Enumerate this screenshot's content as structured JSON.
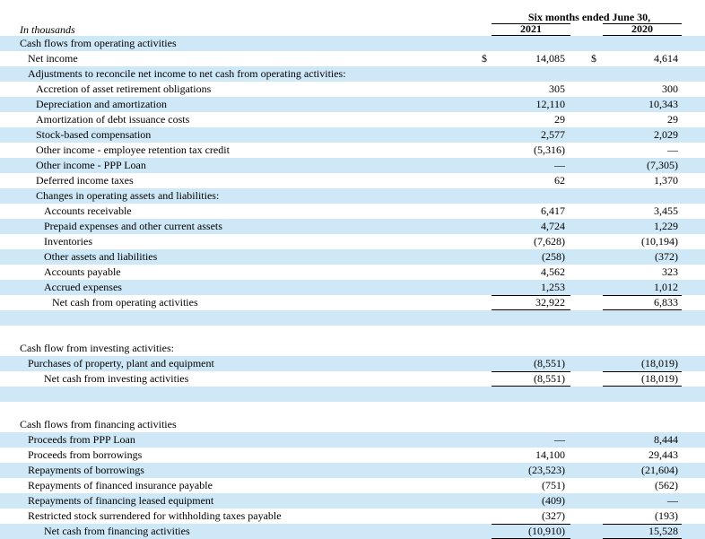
{
  "header": {
    "period": "Six months ended June 30,",
    "col_2021": "2021",
    "col_2020": "2020",
    "units": "In thousands"
  },
  "rows": [
    {
      "label": "Cash flows from operating activities",
      "indent": 0,
      "v21": "",
      "v20": "",
      "shaded": true
    },
    {
      "label": "Net income",
      "indent": 1,
      "cur": "$",
      "v21": "14,085",
      "v20": "4,614",
      "shaded": false
    },
    {
      "label": "Adjustments to reconcile net income to net cash from operating activities:",
      "indent": 1,
      "v21": "",
      "v20": "",
      "shaded": true
    },
    {
      "label": "Accretion of asset retirement obligations",
      "indent": 2,
      "v21": "305",
      "v20": "300",
      "shaded": false
    },
    {
      "label": "Depreciation and amortization",
      "indent": 2,
      "v21": "12,110",
      "v20": "10,343",
      "shaded": true
    },
    {
      "label": "Amortization of debt issuance costs",
      "indent": 2,
      "v21": "29",
      "v20": "29",
      "shaded": false
    },
    {
      "label": "Stock-based compensation",
      "indent": 2,
      "v21": "2,577",
      "v20": "2,029",
      "shaded": true
    },
    {
      "label": "Other income - employee retention tax credit",
      "indent": 2,
      "v21": "(5,316)",
      "v20": "—",
      "shaded": false
    },
    {
      "label": "Other income - PPP Loan",
      "indent": 2,
      "v21": "—",
      "v20": "(7,305)",
      "shaded": true
    },
    {
      "label": "Deferred income taxes",
      "indent": 2,
      "v21": "62",
      "v20": "1,370",
      "shaded": false
    },
    {
      "label": "Changes in operating assets and liabilities:",
      "indent": 2,
      "v21": "",
      "v20": "",
      "shaded": true
    },
    {
      "label": "Accounts receivable",
      "indent": 3,
      "v21": "6,417",
      "v20": "3,455",
      "shaded": false
    },
    {
      "label": "Prepaid expenses and other current assets",
      "indent": 3,
      "v21": "4,724",
      "v20": "1,229",
      "shaded": true
    },
    {
      "label": "Inventories",
      "indent": 3,
      "v21": "(7,628)",
      "v20": "(10,194)",
      "shaded": false
    },
    {
      "label": "Other assets and liabilities",
      "indent": 3,
      "v21": "(258)",
      "v20": "(372)",
      "shaded": true
    },
    {
      "label": "Accounts payable",
      "indent": 3,
      "v21": "4,562",
      "v20": "323",
      "shaded": false
    },
    {
      "label": "Accrued expenses",
      "indent": 3,
      "v21": "1,253",
      "v20": "1,012",
      "shaded": true
    },
    {
      "label": "Net cash from operating activities",
      "indent": 4,
      "v21": "32,922",
      "v20": "6,833",
      "shaded": false,
      "total": true
    },
    {
      "label": "",
      "indent": 0,
      "v21": "",
      "v20": "",
      "shaded": true,
      "spacer": true
    },
    {
      "label": "",
      "indent": 0,
      "v21": "",
      "v20": "",
      "shaded": false,
      "spacer": true
    },
    {
      "label": "Cash flow from investing activities:",
      "indent": 0,
      "v21": "",
      "v20": "",
      "shaded": false
    },
    {
      "label": "Purchases of property, plant and equipment",
      "indent": 1,
      "v21": "(8,551)",
      "v20": "(18,019)",
      "shaded": true
    },
    {
      "label": "Net cash from investing activities",
      "indent": 3,
      "v21": "(8,551)",
      "v20": "(18,019)",
      "shaded": false,
      "total": true
    },
    {
      "label": "",
      "indent": 0,
      "v21": "",
      "v20": "",
      "shaded": true,
      "spacer": true
    },
    {
      "label": "",
      "indent": 0,
      "v21": "",
      "v20": "",
      "shaded": false,
      "spacer": true
    },
    {
      "label": "Cash flows from financing activities",
      "indent": 0,
      "v21": "",
      "v20": "",
      "shaded": false
    },
    {
      "label": "Proceeds from PPP Loan",
      "indent": 1,
      "v21": "—",
      "v20": "8,444",
      "shaded": true
    },
    {
      "label": "Proceeds from borrowings",
      "indent": 1,
      "v21": "14,100",
      "v20": "29,443",
      "shaded": false
    },
    {
      "label": "Repayments of borrowings",
      "indent": 1,
      "v21": "(23,523)",
      "v20": "(21,604)",
      "shaded": true
    },
    {
      "label": "Repayments of financed insurance payable",
      "indent": 1,
      "v21": "(751)",
      "v20": "(562)",
      "shaded": false
    },
    {
      "label": "Repayments of financing leased equipment",
      "indent": 1,
      "v21": "(409)",
      "v20": "—",
      "shaded": true
    },
    {
      "label": "Restricted stock surrendered for withholding taxes payable",
      "indent": 1,
      "v21": "(327)",
      "v20": "(193)",
      "shaded": false
    },
    {
      "label": "Net cash from financing activities",
      "indent": 3,
      "v21": "(10,910)",
      "v20": "15,528",
      "shaded": true,
      "total": true
    }
  ]
}
